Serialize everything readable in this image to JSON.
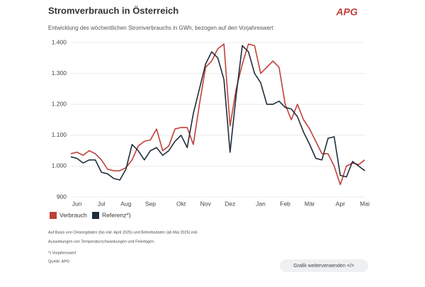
{
  "logo": "APG",
  "chart_data": {
    "type": "line",
    "title": "Stromverbrauch in Österreich",
    "subtitle": "Entwicklung des wöchentlichen Stromverbrauchs in GWh, bezogen auf den Vorjahreswert",
    "categories": [
      null,
      "Jun",
      null,
      null,
      null,
      "Jul",
      null,
      null,
      null,
      "Aug",
      null,
      null,
      null,
      "Sep",
      null,
      null,
      null,
      null,
      "Okt",
      null,
      null,
      null,
      "Nov",
      null,
      null,
      null,
      "Dez",
      null,
      null,
      null,
      null,
      "Jan",
      null,
      null,
      null,
      "Feb",
      null,
      null,
      null,
      "Mär",
      null,
      null,
      null,
      null,
      "Apr",
      null,
      null,
      null,
      "Mai"
    ],
    "series": [
      {
        "name": "Verbrauch",
        "color": "#c0403a",
        "values": [
          1040,
          1045,
          1035,
          1050,
          1040,
          1020,
          990,
          985,
          985,
          995,
          1020,
          1065,
          1080,
          1085,
          1120,
          1050,
          1065,
          1120,
          1125,
          1125,
          1070,
          1200,
          1320,
          1340,
          1380,
          1395,
          1130,
          1250,
          1330,
          1395,
          1390,
          1300,
          1320,
          1340,
          1320,
          1200,
          1150,
          1200,
          1150,
          1120,
          1080,
          1040,
          1040,
          1000,
          940,
          1000,
          1010,
          1005,
          1020
        ]
      },
      {
        "name": "Referenz*)",
        "color": "#1f2d3a",
        "values": [
          1030,
          1025,
          1010,
          1020,
          1020,
          980,
          975,
          960,
          955,
          990,
          1070,
          1050,
          1020,
          1050,
          1060,
          1035,
          1050,
          1080,
          1100,
          1060,
          1170,
          1250,
          1330,
          1370,
          1350,
          1280,
          1045,
          1230,
          1390,
          1370,
          1300,
          1270,
          1200,
          1200,
          1210,
          1190,
          1185,
          1160,
          1110,
          1070,
          1025,
          1020,
          1090,
          1095,
          970,
          965,
          1015,
          1000,
          985
        ]
      }
    ],
    "ylim": [
      900,
      1400
    ],
    "yticks": [
      900,
      {
        "value": 1000,
        "label": "1.000"
      },
      {
        "value": 1100,
        "label": "1.100"
      },
      {
        "value": 1200,
        "label": "1.200"
      },
      {
        "value": 1300,
        "label": "1.300"
      },
      {
        "value": 1400,
        "label": "1.400"
      }
    ],
    "grid": true,
    "legend": "bottom-left"
  },
  "notes": [
    "Auf Basis von Clearingdaten (bis inkl. April 2025) und Betriebsdaten (ab Mai 2025) inkl.",
    "Auswirkungen von Temperaturschwankungen und Feiertagen.",
    "*) Vorjahreswert",
    "Quelle: APG"
  ],
  "button": "Grafik weiterverwenden </>"
}
